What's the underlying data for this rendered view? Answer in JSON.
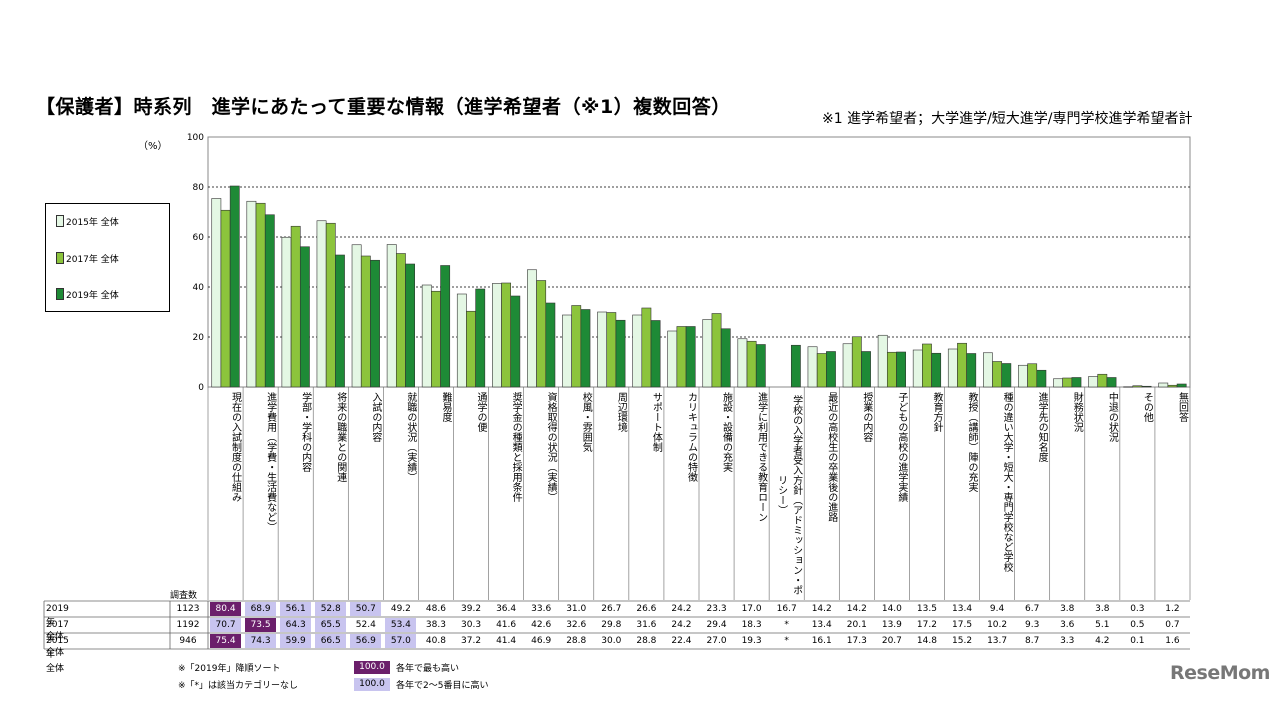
{
  "title": "【保護者】時系列　進学にあたって重要な情報（進学希望者（※1）複数回答）",
  "note": "※1 進学希望者；大学進学/短大進学/専門学校進学希望者計",
  "unit_label": "（%）",
  "count_header": "調査数",
  "footnotes": {
    "sort": "※「2019年」降順ソート",
    "none": "※「*」は該当カテゴリーなし",
    "legend_top": "各年で最も高い",
    "legend_2to5": "各年で2～5番目に高い",
    "box_value": "100.0"
  },
  "logo": "ReseMom",
  "colors": {
    "s2015": "#e4f7e4",
    "s2017": "#8cc43c",
    "s2019": "#1e8a36",
    "highlight_top": "#6b1f6b",
    "highlight_2to5": "#c8c4ef"
  },
  "chart_data": {
    "type": "bar",
    "ylim": [
      0,
      100
    ],
    "yticks": [
      0,
      20,
      40,
      60,
      80,
      100
    ],
    "grid": true,
    "legend_placement": "left",
    "categories": [
      "現在の入試制度の仕組み",
      "進学費用（学費・生活費など）",
      "学部・学科の内容",
      "将来の職業との関連",
      "入試の内容",
      "就職の状況（実績）",
      "難易度",
      "通学の便",
      "奨学金の種類と採用条件",
      "資格取得の状況（実績）",
      "校風・雰囲気",
      "周辺環境",
      "サポート体制",
      "カリキュラムの特徴",
      "施設・設備の充実",
      "進学に利用できる教育ローン",
      "学校の入学者受入方針（アドミッション・ポリシー）",
      "最近の高校生の卒業後の進路",
      "授業の内容",
      "子どもの高校の進学実績",
      "教育方針",
      "教授（講師）陣の充実",
      "種の違い大学・短大・専門学校など学校",
      "進学先の知名度",
      "財務状況",
      "中退の状況",
      "その他",
      "無回答"
    ],
    "series": [
      {
        "name": "2015年 全体",
        "row_label": "2015年　全体",
        "count": "946",
        "values": [
          "75.4",
          "74.3",
          "59.9",
          "66.5",
          "56.9",
          "57.0",
          "40.8",
          "37.2",
          "41.4",
          "46.9",
          "28.8",
          "30.0",
          "28.8",
          "22.4",
          "27.0",
          "19.3",
          "*",
          "16.1",
          "17.3",
          "20.7",
          "14.8",
          "15.2",
          "13.7",
          "8.7",
          "3.3",
          "4.2",
          "0.1",
          "1.6"
        ],
        "highlight": [
          "top",
          "2to5",
          "2to5",
          "2to5",
          "2to5",
          "2to5",
          "",
          "",
          "",
          "",
          "",
          "",
          "",
          "",
          "",
          "",
          "",
          "",
          "",
          "",
          "",
          "",
          "",
          "",
          "",
          "",
          "",
          ""
        ]
      },
      {
        "name": "2017年 全体",
        "row_label": "2017年　全体",
        "count": "1192",
        "values": [
          "70.7",
          "73.5",
          "64.3",
          "65.5",
          "52.4",
          "53.4",
          "38.3",
          "30.3",
          "41.6",
          "42.6",
          "32.6",
          "29.8",
          "31.6",
          "24.2",
          "29.4",
          "18.3",
          "*",
          "13.4",
          "20.1",
          "13.9",
          "17.2",
          "17.5",
          "10.2",
          "9.3",
          "3.6",
          "5.1",
          "0.5",
          "0.7"
        ],
        "highlight": [
          "2to5",
          "top",
          "2to5",
          "2to5",
          "",
          "2to5",
          "",
          "",
          "",
          "",
          "",
          "",
          "",
          "",
          "",
          "",
          "",
          "",
          "",
          "",
          "",
          "",
          "",
          "",
          "",
          "",
          "",
          ""
        ]
      },
      {
        "name": "2019年 全体",
        "row_label": "2019年　全体",
        "count": "1123",
        "values": [
          "80.4",
          "68.9",
          "56.1",
          "52.8",
          "50.7",
          "49.2",
          "48.6",
          "39.2",
          "36.4",
          "33.6",
          "31.0",
          "26.7",
          "26.6",
          "24.2",
          "23.3",
          "17.0",
          "16.7",
          "14.2",
          "14.2",
          "14.0",
          "13.5",
          "13.4",
          "9.4",
          "6.7",
          "3.8",
          "3.8",
          "0.3",
          "1.2"
        ],
        "highlight": [
          "top",
          "2to5",
          "2to5",
          "2to5",
          "2to5",
          "",
          "",
          "",
          "",
          "",
          "",
          "",
          "",
          "",
          "",
          "",
          "",
          "",
          "",
          "",
          "",
          "",
          "",
          "",
          "",
          "",
          "",
          ""
        ]
      }
    ]
  }
}
